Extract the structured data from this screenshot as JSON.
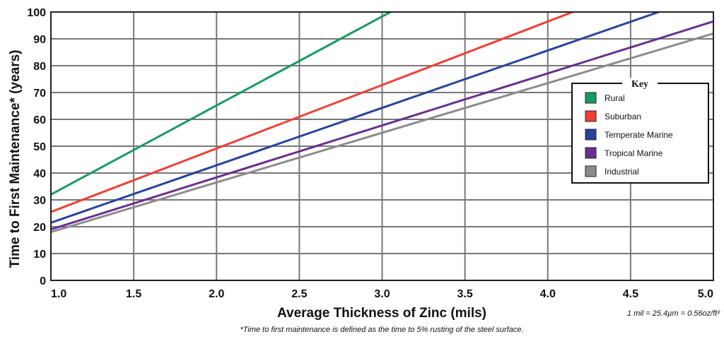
{
  "chart_data": {
    "type": "line",
    "title": "",
    "xlabel": "Average Thickness of Zinc (mils)",
    "ylabel": "Time to First Maintenance* (years)",
    "xlim": [
      1.0,
      5.0
    ],
    "ylim": [
      0,
      100
    ],
    "x_ticks": [
      "1.0",
      "1.5",
      "2.0",
      "2.5",
      "3.0",
      "3.5",
      "4.0",
      "4.5",
      "5.0"
    ],
    "y_ticks": [
      "0",
      "10",
      "20",
      "30",
      "40",
      "50",
      "60",
      "70",
      "80",
      "90",
      "100"
    ],
    "grid": true,
    "legend_title": "Key",
    "legend_position": "right",
    "series": [
      {
        "name": "Rural",
        "color": "#1a9a63",
        "x": [
          1.0,
          3.05
        ],
        "y": [
          32,
          100
        ]
      },
      {
        "name": "Suburban",
        "color": "#ef4036",
        "x": [
          1.0,
          4.15
        ],
        "y": [
          25.5,
          100
        ]
      },
      {
        "name": "Temperate Marine",
        "color": "#27449a",
        "x": [
          1.0,
          4.67
        ],
        "y": [
          21.5,
          100
        ]
      },
      {
        "name": "Tropical Marine",
        "color": "#6a2f8f",
        "x": [
          1.0,
          5.0
        ],
        "y": [
          19,
          96.5
        ]
      },
      {
        "name": "Industrial",
        "color": "#8c8c8c",
        "x": [
          1.0,
          5.0
        ],
        "y": [
          18,
          92
        ]
      }
    ],
    "conversion_note": "1 mil = 25.4µm = 0.56oz/ft²",
    "footnote": "*Time to first maintenance is defined as the time to 5% rusting of the steel surface."
  }
}
